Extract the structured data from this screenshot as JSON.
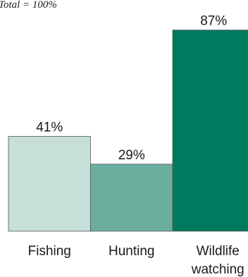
{
  "note": "Total = 100%",
  "chart_data": {
    "type": "bar",
    "title": "",
    "xlabel": "",
    "ylabel": "",
    "ylim": [
      0,
      100
    ],
    "categories": [
      {
        "lines": [
          "Fishing"
        ],
        "value": 41,
        "value_label": "41%",
        "color": "#c6dfd9"
      },
      {
        "lines": [
          "Hunting"
        ],
        "value": 29,
        "value_label": "29%",
        "color": "#6aaf9e"
      },
      {
        "lines": [
          "Wildlife",
          "watching"
        ],
        "value": 87,
        "value_label": "87%",
        "color": "#007a5e"
      }
    ]
  }
}
